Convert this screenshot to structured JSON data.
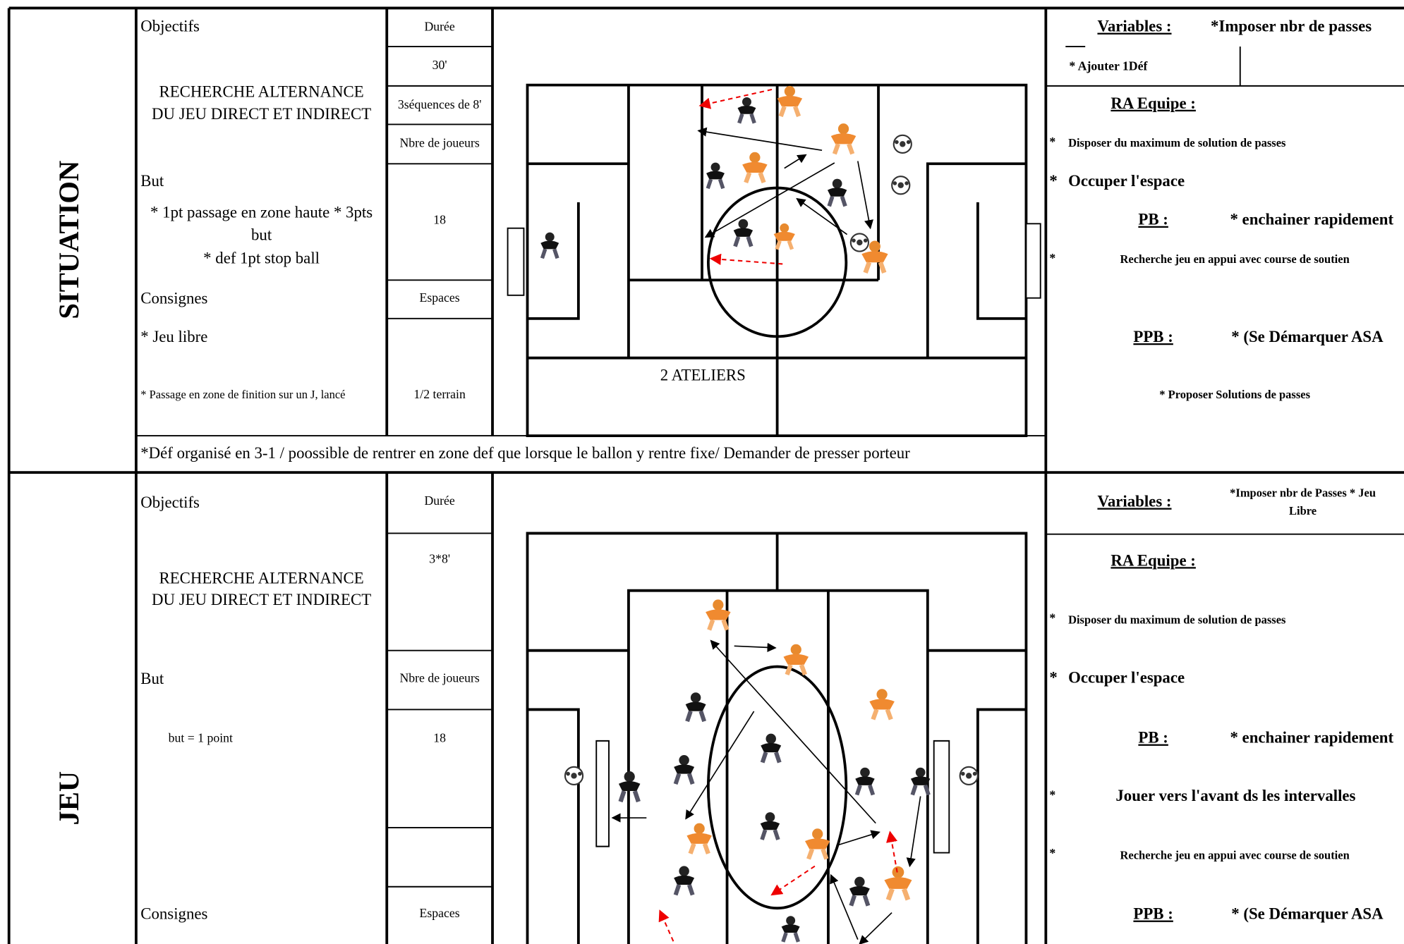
{
  "situation": {
    "label": "SITUATION",
    "objectifs_label": "Objectifs",
    "objectif": [
      "RECHERCHE ALTERNANCE",
      "DU JEU DIRECT ET INDIRECT"
    ],
    "but_label": "But",
    "but": [
      "*  1pt passage en zone haute * 3pts",
      "but",
      "* def 1pt stop ball"
    ],
    "consignes_label": "Consignes",
    "consignes": [
      "* Jeu libre",
      "* Passage en zone de finition sur un J, lancé"
    ],
    "duree_label": "Durée",
    "duree": "30'",
    "sequences": "3séquences de 8'",
    "nbre_label": "Nbre de joueurs",
    "nbre": "18",
    "espaces_label": "Espaces",
    "espaces": "1/2 terrain",
    "diagram_label": "2 ATELIERS",
    "note": "*Déf organisé en 3-1 / poossible de rentrer en zone def que lorsque le ballon y rentre fixe/ Demander de presser porteur",
    "variables_label": "Variables :",
    "variables": [
      "*Imposer nbr de passes",
      "* Ajouter 1Déf"
    ],
    "ra_label": "RA Equipe :",
    "ra": [
      {
        "bullet": "*",
        "text": "Disposer du maximum de solution de passes"
      },
      {
        "bullet": "*",
        "text": "Occuper l'espace"
      }
    ],
    "pb_label": "PB :",
    "pb": "* enchainer rapidement",
    "pb_items": [
      {
        "bullet": "*",
        "text": "Recherche jeu en appui avec course de soutien"
      }
    ],
    "ppb_label": "PPB :",
    "ppb": "* (Se Démarquer  ASA",
    "ppb_items": [
      "* Proposer Solutions de passes"
    ]
  },
  "jeu": {
    "label": "JEU",
    "objectifs_label": "Objectifs",
    "objectif": [
      "RECHERCHE ALTERNANCE",
      "DU JEU DIRECT ET INDIRECT"
    ],
    "but_label": "But",
    "but": [
      "but = 1 point"
    ],
    "consignes_label": "Consignes",
    "duree_label": "Durée",
    "duree": "3*8'",
    "nbre_label": "Nbre de joueurs",
    "nbre": "18",
    "espaces_label": "Espaces",
    "variables_label": "Variables :",
    "variables": [
      "*Imposer nbr de Passes  * Jeu",
      "Libre"
    ],
    "ra_label": "RA Equipe :",
    "ra": [
      {
        "bullet": "*",
        "text": "Disposer du maximum de solution de passes"
      },
      {
        "bullet": "*",
        "text": "Occuper l'espace"
      }
    ],
    "pb_label": "PB :",
    "pb": "* enchainer rapidement",
    "pb_items": [
      {
        "bullet": "*",
        "text": "Jouer vers l'avant ds les intervalles"
      },
      {
        "bullet": "*",
        "text": "Recherche jeu en appui avec course de soutien"
      }
    ],
    "ppb_label": "PPB :",
    "ppb": "* (Se Démarquer  ASA"
  }
}
